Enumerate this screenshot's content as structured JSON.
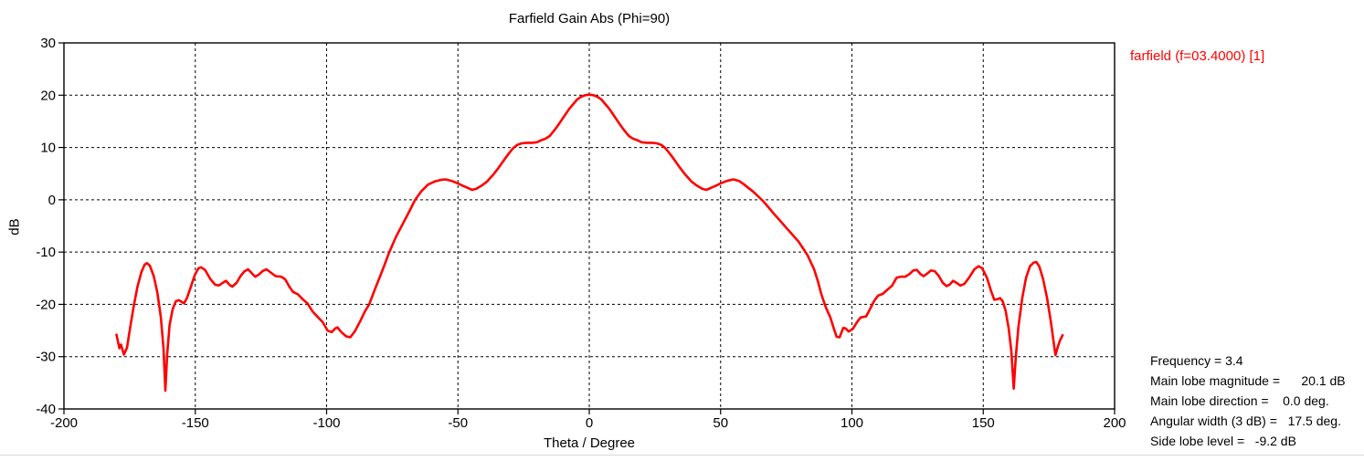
{
  "title": "Farfield Gain Abs (Phi=90)",
  "legend": {
    "label": "farfield (f=03.4000) [1]",
    "color": "#ff0000"
  },
  "stats": {
    "lines": [
      "Frequency = 3.4",
      "Main lobe magnitude =      20.1 dB",
      "Main lobe direction =    0.0 deg.",
      "Angular width (3 dB) =   17.5 deg.",
      "Side lobe level =   -9.2 dB"
    ]
  },
  "chart_data": {
    "type": "line",
    "title": "Farfield Gain Abs (Phi=90)",
    "xlabel": "Theta / Degree",
    "ylabel": "dB",
    "xlim": [
      -200,
      200
    ],
    "ylim": [
      -40,
      30
    ],
    "xticks": [
      -200,
      -150,
      -100,
      -50,
      0,
      50,
      100,
      150,
      200
    ],
    "yticks": [
      30,
      20,
      10,
      0,
      -10,
      -20,
      -30,
      -40
    ],
    "grid": "dashed",
    "grid_color": "#000000",
    "axis_color": "#000000",
    "legend_position": "outside-top-right",
    "series": [
      {
        "name": "farfield (f=03.4000) [1]",
        "color": "#ff0000",
        "points": [
          [
            -180,
            -25.8
          ],
          [
            -178.9,
            -28.4
          ],
          [
            -178.3,
            -27.7
          ],
          [
            -177.2,
            -29.6
          ],
          [
            -176,
            -28.3
          ],
          [
            -174.8,
            -24.5
          ],
          [
            -173.4,
            -20.2
          ],
          [
            -172,
            -16.6
          ],
          [
            -170.5,
            -13.8
          ],
          [
            -169.3,
            -12.4
          ],
          [
            -168.4,
            -12.1
          ],
          [
            -167.3,
            -12.6
          ],
          [
            -165.8,
            -14.6
          ],
          [
            -164.4,
            -17.8
          ],
          [
            -163.1,
            -22.5
          ],
          [
            -162.1,
            -28.5
          ],
          [
            -161.4,
            -36.5
          ],
          [
            -160.7,
            -29.5
          ],
          [
            -159.8,
            -24
          ],
          [
            -158.6,
            -20.9
          ],
          [
            -157.4,
            -19.4
          ],
          [
            -156.3,
            -19.2
          ],
          [
            -155.2,
            -19.5
          ],
          [
            -154.3,
            -19.8
          ],
          [
            -153.2,
            -18.8
          ],
          [
            -151.8,
            -16.8
          ],
          [
            -150.2,
            -14.4
          ],
          [
            -148.8,
            -13.1
          ],
          [
            -147.8,
            -12.9
          ],
          [
            -146.3,
            -13.4
          ],
          [
            -144.3,
            -15.1
          ],
          [
            -142.5,
            -16.2
          ],
          [
            -141.1,
            -16.4
          ],
          [
            -139.6,
            -15.9
          ],
          [
            -138.3,
            -15.5
          ],
          [
            -136.9,
            -16.3
          ],
          [
            -135.9,
            -16.6
          ],
          [
            -134.3,
            -15.9
          ],
          [
            -132.8,
            -14.6
          ],
          [
            -131.3,
            -13.7
          ],
          [
            -129.9,
            -13.3
          ],
          [
            -128.4,
            -14.1
          ],
          [
            -127.2,
            -14.7
          ],
          [
            -125.8,
            -14.3
          ],
          [
            -124.3,
            -13.6
          ],
          [
            -122.9,
            -13.3
          ],
          [
            -121.3,
            -13.9
          ],
          [
            -119.4,
            -14.6
          ],
          [
            -117.3,
            -14.7
          ],
          [
            -115.8,
            -15.2
          ],
          [
            -114.2,
            -16.6
          ],
          [
            -112.8,
            -17.6
          ],
          [
            -110.9,
            -18.1
          ],
          [
            -108.9,
            -19.1
          ],
          [
            -107.3,
            -19.8
          ],
          [
            -105.3,
            -21.4
          ],
          [
            -103.2,
            -22.5
          ],
          [
            -101.5,
            -23.4
          ],
          [
            -99.6,
            -25
          ],
          [
            -98.1,
            -25.3
          ],
          [
            -96.7,
            -24.6
          ],
          [
            -95.9,
            -24.4
          ],
          [
            -94.4,
            -25.3
          ],
          [
            -92.6,
            -26.1
          ],
          [
            -91,
            -26.3
          ],
          [
            -89.2,
            -25.1
          ],
          [
            -87.2,
            -23.2
          ],
          [
            -85.4,
            -21.3
          ],
          [
            -83.8,
            -20
          ],
          [
            -81.6,
            -17.1
          ],
          [
            -79.6,
            -14.6
          ],
          [
            -77.9,
            -12.4
          ],
          [
            -76.2,
            -10.1
          ],
          [
            -73.6,
            -7.1
          ],
          [
            -71,
            -4.6
          ],
          [
            -68.6,
            -2.3
          ],
          [
            -66.4,
            -0.1
          ],
          [
            -64,
            1.6
          ],
          [
            -61.4,
            2.9
          ],
          [
            -58.8,
            3.5
          ],
          [
            -56.6,
            3.8
          ],
          [
            -54.7,
            3.9
          ],
          [
            -52.4,
            3.6
          ],
          [
            -50.3,
            3.2
          ],
          [
            -48.2,
            2.7
          ],
          [
            -46.4,
            2.3
          ],
          [
            -44.6,
            1.9
          ],
          [
            -43,
            2.1
          ],
          [
            -41,
            2.7
          ],
          [
            -38.9,
            3.5
          ],
          [
            -36.6,
            4.8
          ],
          [
            -34.4,
            6.2
          ],
          [
            -32.3,
            7.7
          ],
          [
            -30.4,
            9
          ],
          [
            -28.9,
            9.9
          ],
          [
            -27.4,
            10.5
          ],
          [
            -25.7,
            10.8
          ],
          [
            -23.8,
            10.9
          ],
          [
            -21.8,
            10.9
          ],
          [
            -19.9,
            11
          ],
          [
            -18.3,
            11.4
          ],
          [
            -16.6,
            11.7
          ],
          [
            -15.1,
            12.2
          ],
          [
            -13.6,
            13.1
          ],
          [
            -12.1,
            14.1
          ],
          [
            -10.6,
            15.2
          ],
          [
            -9.1,
            16.3
          ],
          [
            -7.6,
            17.4
          ],
          [
            -6.1,
            18.3
          ],
          [
            -4.6,
            19.2
          ],
          [
            -3.1,
            19.7
          ],
          [
            -1.6,
            20
          ],
          [
            0,
            20.1
          ],
          [
            1.6,
            20
          ],
          [
            3.1,
            19.7
          ],
          [
            4.6,
            19.2
          ],
          [
            6.1,
            18.3
          ],
          [
            7.6,
            17.4
          ],
          [
            9.1,
            16.3
          ],
          [
            10.6,
            15.2
          ],
          [
            12.1,
            14.1
          ],
          [
            13.6,
            13.1
          ],
          [
            15.1,
            12.2
          ],
          [
            16.6,
            11.7
          ],
          [
            18.3,
            11.4
          ],
          [
            19.9,
            11
          ],
          [
            21.8,
            10.9
          ],
          [
            23.8,
            10.9
          ],
          [
            25.7,
            10.8
          ],
          [
            27.4,
            10.5
          ],
          [
            28.9,
            9.9
          ],
          [
            30.4,
            9
          ],
          [
            32.3,
            7.7
          ],
          [
            34.4,
            6.2
          ],
          [
            36.6,
            4.8
          ],
          [
            38.9,
            3.5
          ],
          [
            41,
            2.7
          ],
          [
            43,
            2.1
          ],
          [
            44.6,
            1.9
          ],
          [
            46.4,
            2.3
          ],
          [
            48.2,
            2.7
          ],
          [
            50.3,
            3.2
          ],
          [
            52.4,
            3.6
          ],
          [
            54.9,
            3.9
          ],
          [
            57,
            3.6
          ],
          [
            58.8,
            3
          ],
          [
            60.8,
            2.2
          ],
          [
            62.3,
            1.6
          ],
          [
            64.2,
            0.7
          ],
          [
            66.1,
            -0.2
          ],
          [
            68.3,
            -1.5
          ],
          [
            70.5,
            -2.8
          ],
          [
            72.8,
            -4.1
          ],
          [
            75.1,
            -5.4
          ],
          [
            77.4,
            -6.7
          ],
          [
            79.7,
            -8
          ],
          [
            81.4,
            -9.3
          ],
          [
            83.1,
            -10.6
          ],
          [
            85.6,
            -13.3
          ],
          [
            87,
            -15.5
          ],
          [
            88.3,
            -18
          ],
          [
            90.1,
            -20.6
          ],
          [
            91.8,
            -22.5
          ],
          [
            93.2,
            -24.8
          ],
          [
            94.2,
            -26.2
          ],
          [
            95.3,
            -26.3
          ],
          [
            96.7,
            -24.5
          ],
          [
            97.6,
            -24.6
          ],
          [
            98.8,
            -25.2
          ],
          [
            100.3,
            -24.7
          ],
          [
            101.9,
            -23.4
          ],
          [
            103.3,
            -22.5
          ],
          [
            105.4,
            -22.3
          ],
          [
            107,
            -20.8
          ],
          [
            108.5,
            -19.3
          ],
          [
            110,
            -18.3
          ],
          [
            111.7,
            -18
          ],
          [
            113.5,
            -17.2
          ],
          [
            115.3,
            -16.4
          ],
          [
            117,
            -14.9
          ],
          [
            118.6,
            -14.7
          ],
          [
            120.3,
            -14.7
          ],
          [
            121.9,
            -14.2
          ],
          [
            123.4,
            -13.5
          ],
          [
            124.7,
            -13.4
          ],
          [
            126.1,
            -14.2
          ],
          [
            127.3,
            -14.6
          ],
          [
            128.7,
            -14.1
          ],
          [
            130.1,
            -13.5
          ],
          [
            131.6,
            -13.7
          ],
          [
            133.1,
            -14.6
          ],
          [
            134.6,
            -15.9
          ],
          [
            136,
            -16.5
          ],
          [
            137.2,
            -16.2
          ],
          [
            138.5,
            -15.5
          ],
          [
            139.9,
            -15.9
          ],
          [
            141.3,
            -16.4
          ],
          [
            142.8,
            -16.1
          ],
          [
            144.6,
            -14.9
          ],
          [
            146.6,
            -13.3
          ],
          [
            148.2,
            -12.7
          ],
          [
            149.6,
            -13.1
          ],
          [
            151.4,
            -14.9
          ],
          [
            153,
            -17.5
          ],
          [
            154.2,
            -19.1
          ],
          [
            155.5,
            -19
          ],
          [
            156.4,
            -18.8
          ],
          [
            157.4,
            -19.4
          ],
          [
            158.5,
            -21.2
          ],
          [
            159.7,
            -24.6
          ],
          [
            160.7,
            -29
          ],
          [
            161.6,
            -36.1
          ],
          [
            162.4,
            -30
          ],
          [
            163.4,
            -24.2
          ],
          [
            164.9,
            -18.6
          ],
          [
            166.3,
            -14.9
          ],
          [
            167.8,
            -12.7
          ],
          [
            169.2,
            -12
          ],
          [
            170.2,
            -11.9
          ],
          [
            171.3,
            -12.7
          ],
          [
            172.8,
            -15.2
          ],
          [
            174.3,
            -18.8
          ],
          [
            175.8,
            -23.5
          ],
          [
            176.9,
            -27.6
          ],
          [
            177.5,
            -29.7
          ],
          [
            178.4,
            -28.1
          ],
          [
            179.2,
            -26.9
          ],
          [
            180.2,
            -25.9
          ]
        ]
      }
    ]
  }
}
